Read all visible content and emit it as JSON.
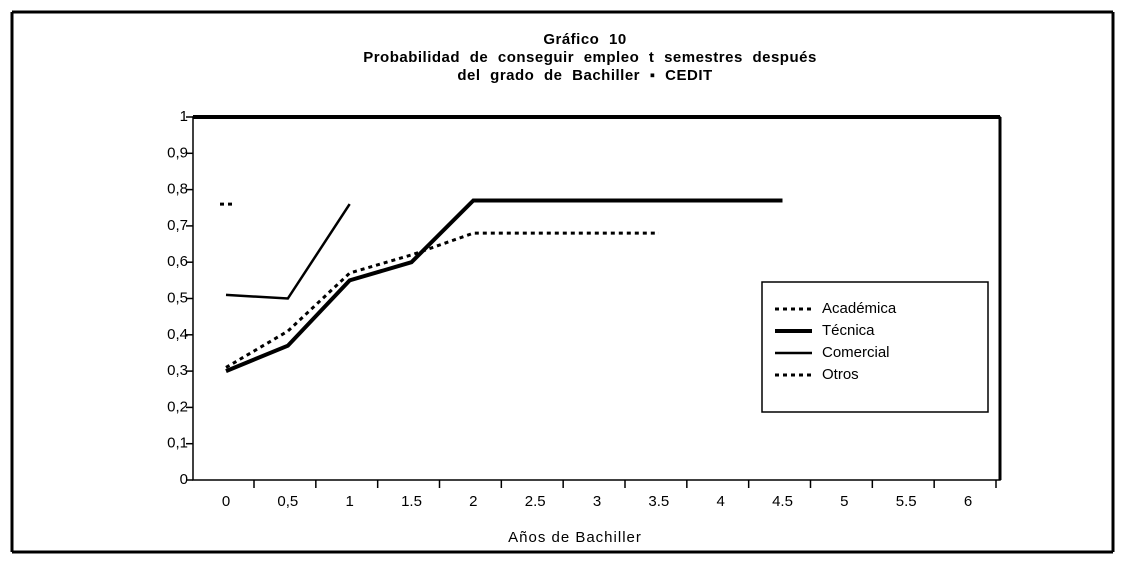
{
  "chart_data": {
    "type": "line",
    "title": [
      "Gráfico 10",
      "Probabilidad de conseguir empleo t semestres después",
      "del grado de Bachiller ▪ CEDIT"
    ],
    "x_label": "Años de Bachiller",
    "x": [
      0,
      0.5,
      1,
      1.5,
      2,
      2.5,
      3,
      3.5,
      4,
      4.5
    ],
    "series": [
      {
        "name": "Académica",
        "color": "#000000",
        "line_style": "dotted",
        "values": [
          0.31,
          0.41,
          0.57,
          0.62,
          0.68,
          0.68,
          0.68,
          0.68,
          null,
          null
        ]
      },
      {
        "name": "Técnica",
        "color": "#000000",
        "line_style": "thick",
        "values": [
          0.3,
          0.37,
          0.55,
          0.6,
          0.77,
          0.77,
          0.77,
          0.77,
          0.77,
          0.77
        ]
      },
      {
        "name": "Comercial",
        "color": "#000000",
        "line_style": "solid",
        "values": [
          0.51,
          0.5,
          0.76,
          null,
          null,
          null,
          null,
          null,
          null,
          null
        ]
      },
      {
        "name": "Otros",
        "color": "#000000",
        "line_style": "dotted",
        "values": [
          0.76,
          null,
          null,
          null,
          null,
          null,
          null,
          null,
          null,
          null
        ]
      }
    ],
    "xlim": [
      0,
      6
    ],
    "xticks": [
      0,
      {
        "value": 0.5,
        "label": "0,5"
      },
      1,
      1.5,
      2,
      2.5,
      3,
      3.5,
      4,
      4.5,
      5,
      5.5,
      6
    ],
    "ylim": [
      0,
      1
    ],
    "yticks": [
      0,
      {
        "value": 0.1,
        "label": "0,1"
      },
      {
        "value": 0.2,
        "label": "0,2"
      },
      {
        "value": 0.3,
        "label": "0,3"
      },
      {
        "value": 0.4,
        "label": "0,4"
      },
      {
        "value": 0.5,
        "label": "0,5"
      },
      {
        "value": 0.6,
        "label": "0,6"
      },
      {
        "value": 0.7,
        "label": "0,7"
      },
      {
        "value": 0.8,
        "label": "0,8"
      },
      {
        "value": 0.9,
        "label": "0,9"
      },
      1
    ],
    "grid": false,
    "legend": "right"
  }
}
